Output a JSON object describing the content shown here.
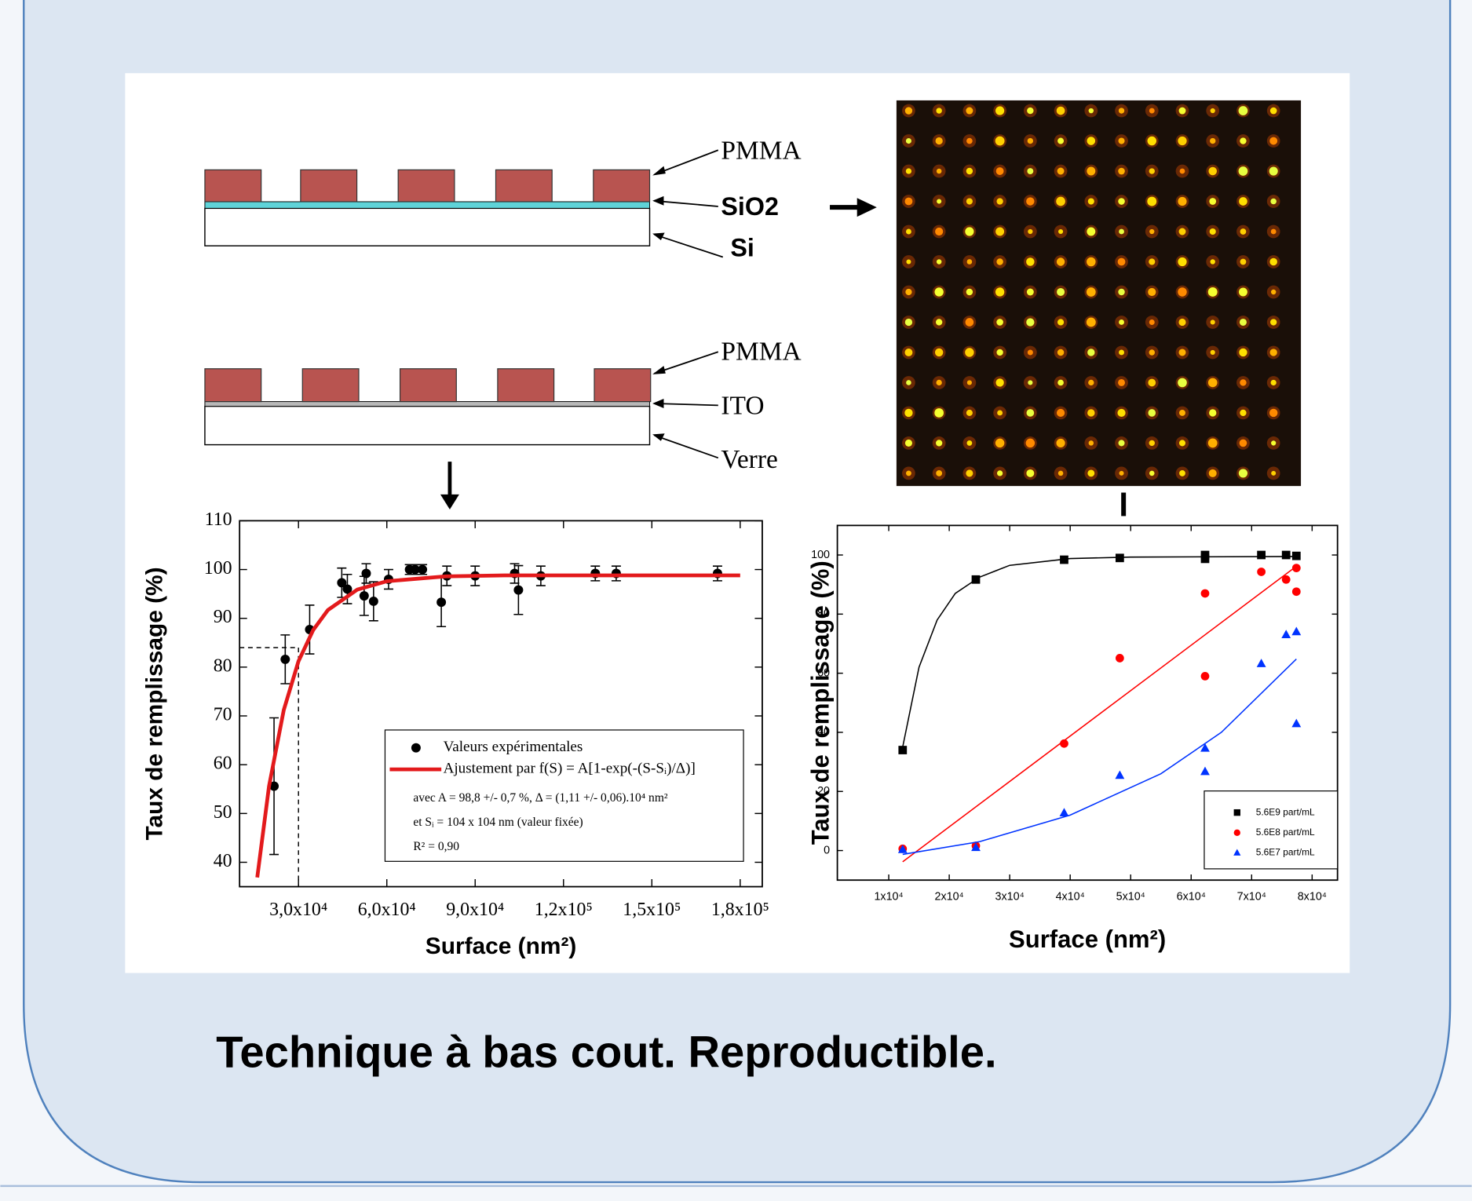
{
  "chart_data": [
    {
      "type": "scatter",
      "xlabel": "Surface (nm²)",
      "ylabel": "Taux de remplissage (%)",
      "xlim": [
        10000,
        187500
      ],
      "ylim": [
        35,
        110
      ],
      "xticks": [
        {
          "value": 30000,
          "label": "3,0x10⁴"
        },
        {
          "value": 60000,
          "label": "6,0x10⁴"
        },
        {
          "value": 90000,
          "label": "9,0x10⁴"
        },
        {
          "value": 120000,
          "label": "1,2x10⁵"
        },
        {
          "value": 150000,
          "label": "1,5x10⁵"
        },
        {
          "value": 180000,
          "label": "1,8x10⁵"
        }
      ],
      "yticks": [
        40,
        50,
        60,
        70,
        80,
        90,
        100,
        110
      ],
      "series": [
        {
          "name": "Valeurs expérimentales",
          "color": "#000000",
          "mode": "markers",
          "marker": "circle",
          "x": [
            21700,
            25500,
            33800,
            44700,
            46600,
            52300,
            53000,
            55500,
            60600,
            67700,
            69600,
            72100,
            78500,
            80400,
            90000,
            103400,
            104700,
            112300,
            130800,
            137900,
            172300
          ],
          "values": [
            55.6,
            81.6,
            87.7,
            97.3,
            96,
            94.6,
            99.2,
            93.5,
            98,
            100,
            100,
            100,
            93.3,
            98.7,
            98.7,
            99.2,
            95.8,
            98.7,
            99.2,
            99.2,
            99.2
          ],
          "errors": [
            14,
            5,
            5,
            3,
            3,
            4,
            2,
            4,
            2,
            1,
            1,
            1,
            5,
            2,
            2,
            2,
            5,
            2,
            1.5,
            1.5,
            1.5
          ]
        },
        {
          "name": "Ajustement par f(S) = A[1-exp(-(S-Sᵢ)/Δ)]",
          "color": "#e31a1c",
          "mode": "line",
          "x": [
            16000,
            20000,
            25000,
            30000,
            35000,
            40000,
            50000,
            60000,
            80000,
            100000,
            180000
          ],
          "values": [
            36.9,
            55.6,
            71.2,
            81.2,
            87.6,
            91.7,
            95.9,
            97.6,
            98.6,
            98.8,
            98.8
          ]
        }
      ],
      "legend_notes": [
        "avec A = 98,8 +/- 0,7 %, Δ = (1,11 +/- 0,06).10⁴ nm²",
        "et Sᵢ = 104 x 104 nm (valeur fixée)",
        "R² = 0,90"
      ],
      "guide": {
        "x": 30000,
        "y": 84
      }
    },
    {
      "type": "scatter",
      "xlabel": "Surface (nm²)",
      "ylabel": "Taux de remplissage (%)",
      "xlim": [
        1500,
        84200
      ],
      "ylim": [
        -10,
        110
      ],
      "xticks": [
        {
          "value": 10000,
          "label": "1x10⁴"
        },
        {
          "value": 20000,
          "label": "2x10⁴"
        },
        {
          "value": 30000,
          "label": "3x10⁴"
        },
        {
          "value": 40000,
          "label": "4x10⁴"
        },
        {
          "value": 50000,
          "label": "5x10⁴"
        },
        {
          "value": 60000,
          "label": "6x10⁴"
        },
        {
          "value": 70000,
          "label": "7x10⁴"
        },
        {
          "value": 80000,
          "label": "8x10⁴"
        }
      ],
      "yticks": [
        0,
        20,
        40,
        60,
        80,
        100
      ],
      "series": [
        {
          "name": "5.6E9 part/mL",
          "color": "#000000",
          "mode": "markers",
          "marker": "square",
          "x": [
            12300,
            24400,
            39000,
            48200,
            62300,
            62300,
            71600,
            75700,
            77400
          ],
          "values": [
            34,
            91.7,
            98.4,
            99,
            98.7,
            100,
            100,
            100,
            99.7
          ]
        },
        {
          "name": "5.6E8 part/mL",
          "color": "#ff0000",
          "mode": "markers",
          "marker": "circle",
          "x": [
            12300,
            24400,
            39000,
            48200,
            62300,
            62300,
            71600,
            75700,
            77400,
            77400
          ],
          "values": [
            0.6,
            1.6,
            36.2,
            65.1,
            87,
            59,
            94.3,
            91.7,
            95.6,
            87.6
          ]
        },
        {
          "name": "5.6E7 part/mL",
          "color": "#0033ff",
          "mode": "markers",
          "marker": "triangle",
          "x": [
            12300,
            24400,
            39000,
            48200,
            62300,
            62300,
            71600,
            75700,
            77400,
            77400
          ],
          "values": [
            0.3,
            1,
            12.7,
            25.4,
            34.6,
            26.7,
            63.2,
            73,
            74,
            42.9
          ]
        },
        {
          "color": "#000000",
          "mode": "line",
          "x": [
            12300,
            15000,
            18000,
            21000,
            25000,
            30000,
            40000,
            50000,
            78000
          ],
          "values": [
            35,
            62,
            78,
            87,
            92.5,
            96.5,
            98.8,
            99.3,
            99.5
          ]
        },
        {
          "color": "#ff0000",
          "mode": "line",
          "x": [
            12300,
            77400
          ],
          "values": [
            -3.8,
            96.2
          ]
        },
        {
          "color": "#0033ff",
          "mode": "line",
          "x": [
            12300,
            25000,
            40000,
            55000,
            65000,
            77400
          ],
          "values": [
            -1.3,
            3,
            12,
            26,
            40,
            64.8
          ]
        }
      ]
    }
  ],
  "diagram": {
    "top_layers": [
      "PMMA",
      "SiO2",
      "Si"
    ],
    "bottom_layers": [
      "PMMA",
      "ITO",
      "Verre"
    ]
  },
  "caption": "Technique à bas cout. Reproductible."
}
